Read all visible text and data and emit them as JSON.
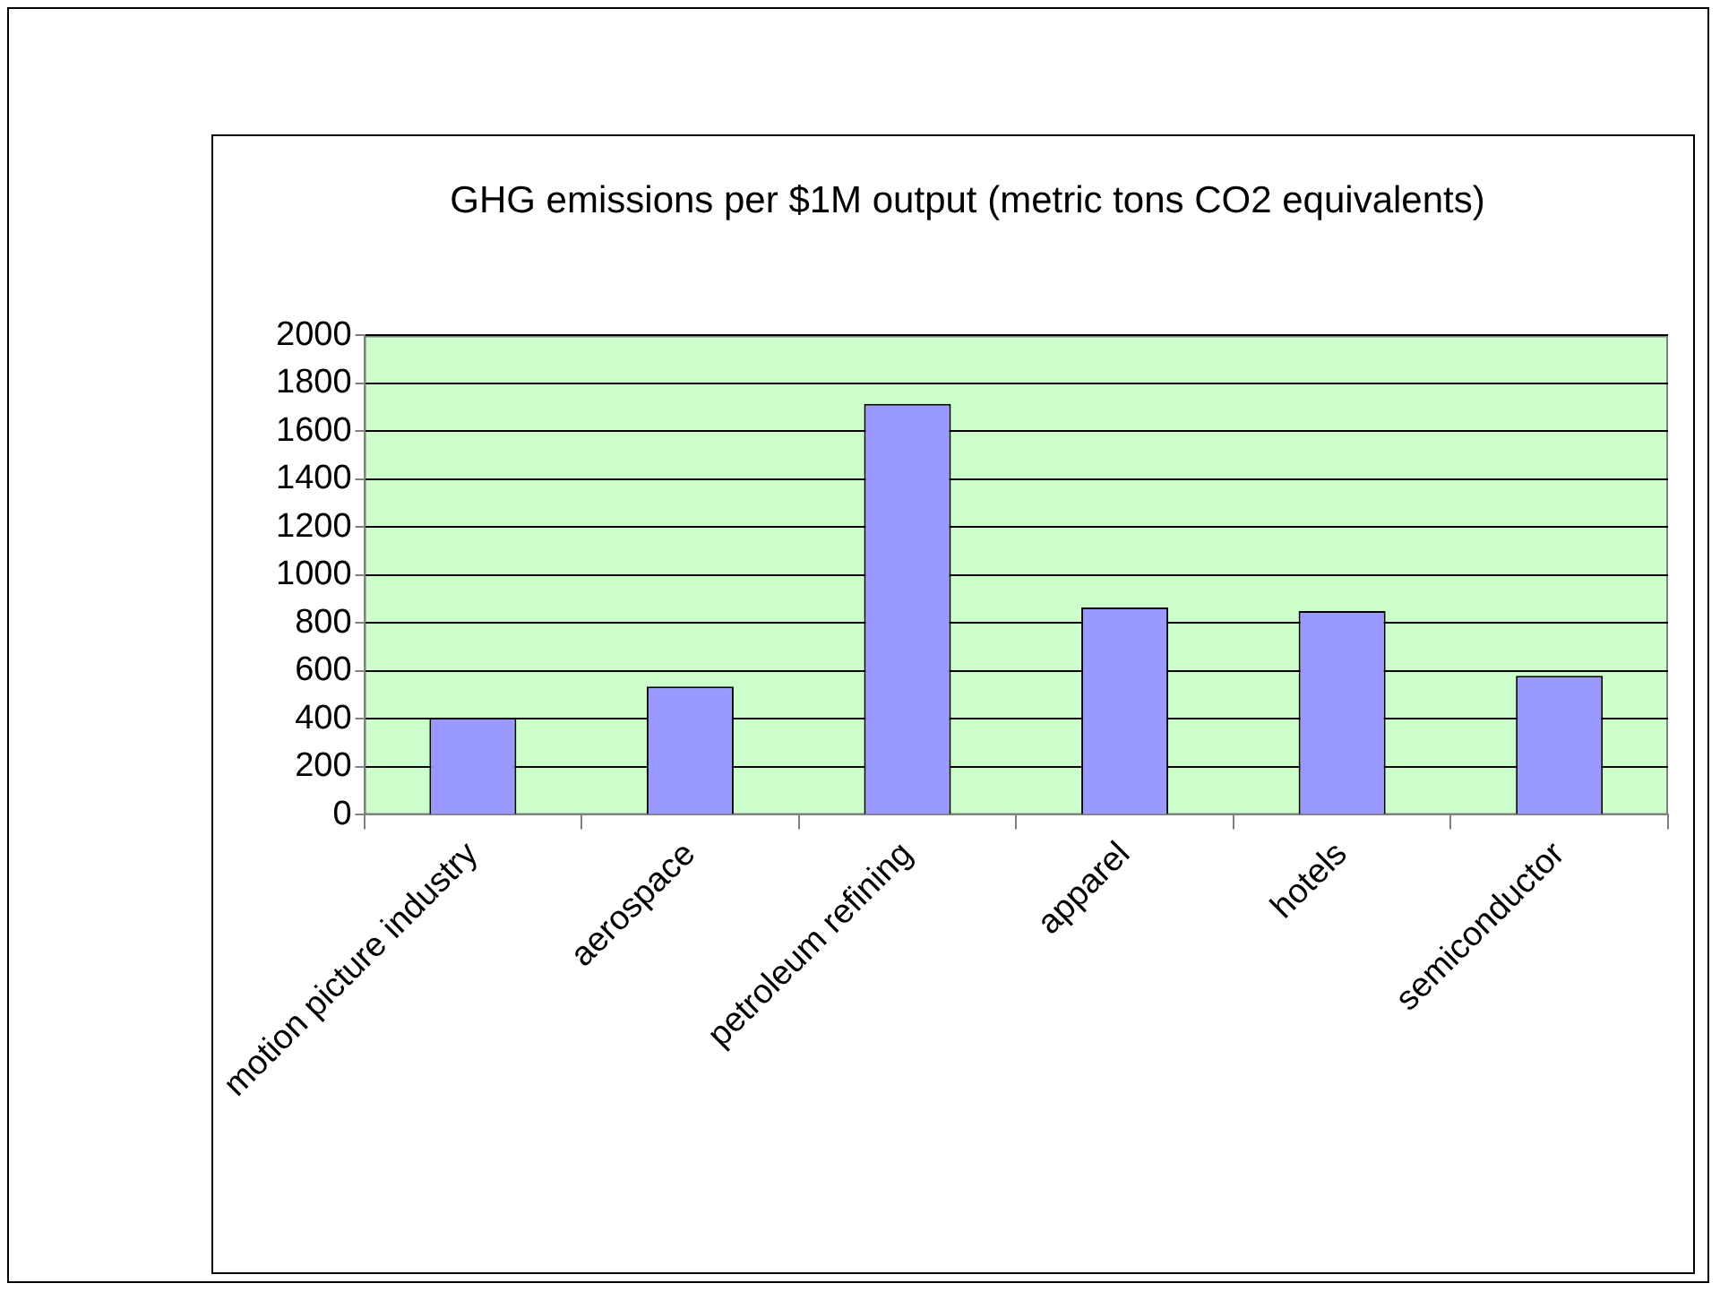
{
  "chart_data": {
    "type": "bar",
    "title": "GHG emissions per $1M output (metric tons CO2 equivalents)",
    "categories": [
      "motion picture industry",
      "aerospace",
      "petroleum refining",
      "apparel",
      "hotels",
      "semiconductor"
    ],
    "values": [
      405,
      535,
      1715,
      865,
      850,
      580
    ],
    "color": "#9999ff",
    "ylim": [
      0,
      2000
    ],
    "yticks": [
      0,
      200,
      400,
      600,
      800,
      1000,
      1200,
      1400,
      1600,
      1800,
      2000
    ],
    "grid": "y",
    "legend": false
  }
}
